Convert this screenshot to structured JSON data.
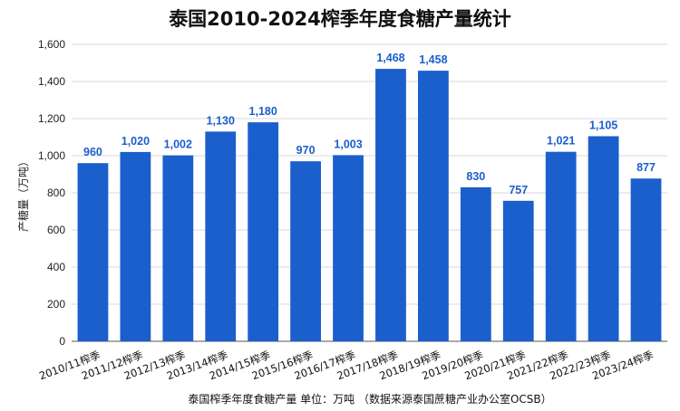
{
  "chart_data": {
    "type": "bar",
    "title": "泰国2010-2024榨季年度食糖产量统计",
    "ylabel": "产糖量（万吨）",
    "footer": "泰国榨季年度食糖产量 单位：万吨 （数据来源泰国蔗糖产业办公室OCSB）",
    "categories": [
      "2010/11榨季",
      "2011/12榨季",
      "2012/13榨季",
      "2013/14榨季",
      "2014/15榨季",
      "2015/16榨季",
      "2016/17榨季",
      "2017/18榨季",
      "2018/19榨季",
      "2019/20榨季",
      "2020/21榨季",
      "2021/22榨季",
      "2022/23榨季",
      "2023/24榨季"
    ],
    "values": [
      960,
      1020,
      1002,
      1130,
      1180,
      970,
      1003,
      1468,
      1458,
      830,
      757,
      1021,
      1105,
      877
    ],
    "value_labels": [
      "960",
      "1,020",
      "1,002",
      "1,130",
      "1,180",
      "970",
      "1,003",
      "1,468",
      "1,458",
      "830",
      "757",
      "1,021",
      "1,105",
      "877"
    ],
    "ylim": [
      0,
      1600
    ],
    "yticks": [
      0,
      200,
      400,
      600,
      800,
      1000,
      1200,
      1400,
      1600
    ],
    "ytick_labels": [
      "0",
      "200",
      "400",
      "600",
      "800",
      "1,000",
      "1,200",
      "1,400",
      "1,600"
    ],
    "grid": true,
    "legend": "none",
    "bar_color": "#1a5fcc"
  }
}
